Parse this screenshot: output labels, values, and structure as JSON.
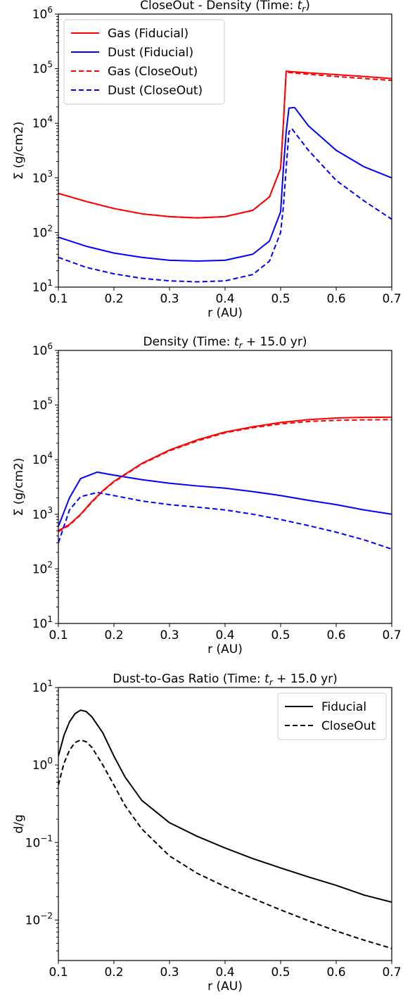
{
  "chart_data": [
    {
      "type": "line",
      "title": "CloseOut - Density (Time: t_r)",
      "title_parts": [
        "CloseOut - Density (Time: ",
        "t",
        "r",
        ")"
      ],
      "xlabel": "r (AU)",
      "ylabel": "Σ (g/cm2)",
      "xlim": [
        0.1,
        0.7
      ],
      "ylim": [
        10,
        1000000
      ],
      "yscale": "log",
      "grid": false,
      "legend_position": "top-left",
      "x_ticks": [
        "0.1",
        "0.2",
        "0.3",
        "0.4",
        "0.5",
        "0.6",
        "0.7"
      ],
      "y_ticks": [
        {
          "base": "10",
          "exp": "1"
        },
        {
          "base": "10",
          "exp": "2"
        },
        {
          "base": "10",
          "exp": "3"
        },
        {
          "base": "10",
          "exp": "4"
        },
        {
          "base": "10",
          "exp": "5"
        },
        {
          "base": "10",
          "exp": "6"
        }
      ],
      "series": [
        {
          "name": "Gas (Fiducial)",
          "color": "#ff0000",
          "dash": "solid",
          "x": [
            0.1,
            0.15,
            0.2,
            0.25,
            0.3,
            0.35,
            0.4,
            0.45,
            0.48,
            0.5,
            0.505,
            0.51,
            0.52,
            0.55,
            0.6,
            0.65,
            0.7
          ],
          "y": [
            520,
            370,
            275,
            220,
            195,
            185,
            195,
            255,
            450,
            1500,
            10000,
            90000,
            88000,
            84000,
            78000,
            72000,
            66000
          ]
        },
        {
          "name": "Dust (Fiducial)",
          "color": "#0000ff",
          "dash": "solid",
          "x": [
            0.1,
            0.15,
            0.2,
            0.25,
            0.3,
            0.35,
            0.4,
            0.45,
            0.48,
            0.5,
            0.505,
            0.51,
            0.515,
            0.525,
            0.55,
            0.6,
            0.65,
            0.7
          ],
          "y": [
            82,
            56,
            42,
            35,
            31,
            30,
            31,
            40,
            70,
            240,
            1500,
            7000,
            19000,
            19500,
            9000,
            3200,
            1600,
            1000
          ]
        },
        {
          "name": "Gas (CloseOut)",
          "color": "#ff0000",
          "dash": "dashed",
          "x": [
            0.1,
            0.15,
            0.2,
            0.25,
            0.3,
            0.35,
            0.4,
            0.45,
            0.48,
            0.5,
            0.505,
            0.51,
            0.52,
            0.55,
            0.6,
            0.65,
            0.7
          ],
          "y": [
            520,
            370,
            275,
            220,
            195,
            185,
            195,
            255,
            450,
            1500,
            10000,
            87000,
            84000,
            79000,
            72000,
            66000,
            61000
          ]
        },
        {
          "name": "Dust (CloseOut)",
          "color": "#0000ff",
          "dash": "dashed",
          "x": [
            0.1,
            0.15,
            0.2,
            0.25,
            0.3,
            0.35,
            0.4,
            0.45,
            0.48,
            0.5,
            0.505,
            0.51,
            0.515,
            0.52,
            0.55,
            0.6,
            0.65,
            0.7
          ],
          "y": [
            35,
            23,
            17.5,
            14.5,
            13,
            12.5,
            13,
            17,
            30,
            100,
            300,
            1500,
            7000,
            8000,
            3200,
            900,
            380,
            175
          ]
        }
      ]
    },
    {
      "type": "line",
      "title": "Density  (Time: t_r + 15.0 yr)",
      "title_parts": [
        "Density  (Time: ",
        "t",
        "r",
        " + 15.0 yr)"
      ],
      "xlabel": "r (AU)",
      "ylabel": "Σ (g/cm2)",
      "xlim": [
        0.1,
        0.7
      ],
      "ylim": [
        10,
        1000000
      ],
      "yscale": "log",
      "grid": false,
      "x_ticks": [
        "0.1",
        "0.2",
        "0.3",
        "0.4",
        "0.5",
        "0.6",
        "0.7"
      ],
      "y_ticks": [
        {
          "base": "10",
          "exp": "1"
        },
        {
          "base": "10",
          "exp": "2"
        },
        {
          "base": "10",
          "exp": "3"
        },
        {
          "base": "10",
          "exp": "4"
        },
        {
          "base": "10",
          "exp": "5"
        },
        {
          "base": "10",
          "exp": "6"
        }
      ],
      "series": [
        {
          "color": "#ff0000",
          "dash": "solid",
          "x": [
            0.1,
            0.12,
            0.14,
            0.16,
            0.18,
            0.2,
            0.25,
            0.3,
            0.35,
            0.4,
            0.45,
            0.5,
            0.55,
            0.6,
            0.65,
            0.7
          ],
          "y": [
            500,
            650,
            1000,
            1700,
            2700,
            4000,
            8500,
            15000,
            23000,
            32000,
            40000,
            48000,
            54000,
            58000,
            59500,
            60000
          ]
        },
        {
          "color": "#0000ff",
          "dash": "solid",
          "x": [
            0.1,
            0.12,
            0.14,
            0.17,
            0.2,
            0.25,
            0.3,
            0.35,
            0.4,
            0.45,
            0.5,
            0.55,
            0.6,
            0.65,
            0.7
          ],
          "y": [
            600,
            2000,
            4500,
            5900,
            5200,
            4300,
            3700,
            3300,
            3000,
            2600,
            2200,
            1800,
            1500,
            1200,
            1000
          ]
        },
        {
          "color": "#ff0000",
          "dash": "dashed",
          "x": [
            0.1,
            0.12,
            0.14,
            0.16,
            0.18,
            0.2,
            0.25,
            0.3,
            0.35,
            0.4,
            0.45,
            0.5,
            0.55,
            0.6,
            0.65,
            0.7
          ],
          "y": [
            480,
            630,
            980,
            1650,
            2650,
            3900,
            8300,
            14500,
            22000,
            31000,
            38500,
            45000,
            50000,
            52500,
            53500,
            54000
          ]
        },
        {
          "color": "#0000ff",
          "dash": "dashed",
          "x": [
            0.1,
            0.12,
            0.14,
            0.17,
            0.2,
            0.25,
            0.3,
            0.35,
            0.4,
            0.45,
            0.5,
            0.55,
            0.6,
            0.65,
            0.7
          ],
          "y": [
            300,
            1200,
            2100,
            2500,
            2200,
            1750,
            1500,
            1350,
            1200,
            1000,
            800,
            620,
            470,
            340,
            230
          ]
        }
      ]
    },
    {
      "type": "line",
      "title": "Dust-to-Gas Ratio (Time: t_r + 15.0 yr)",
      "title_parts": [
        "Dust-to-Gas Ratio (Time: ",
        "t",
        "r",
        " + 15.0 yr)"
      ],
      "xlabel": "r (AU)",
      "ylabel": "d/g",
      "xlim": [
        0.1,
        0.7
      ],
      "ylim": [
        0.003,
        10
      ],
      "yscale": "log",
      "grid": false,
      "legend_position": "top-right",
      "x_ticks": [
        "0.1",
        "0.2",
        "0.3",
        "0.4",
        "0.5",
        "0.6",
        "0.7"
      ],
      "y_ticks": [
        {
          "base": "10",
          "exp": "−2",
          "value": 0.01
        },
        {
          "base": "10",
          "exp": "−1",
          "value": 0.1
        },
        {
          "base": "10",
          "exp": "0",
          "value": 1
        },
        {
          "base": "10",
          "exp": "1",
          "value": 10
        }
      ],
      "series": [
        {
          "name": "Fiducial",
          "color": "#000000",
          "dash": "solid",
          "x": [
            0.1,
            0.11,
            0.12,
            0.13,
            0.14,
            0.15,
            0.16,
            0.18,
            0.2,
            0.22,
            0.25,
            0.3,
            0.35,
            0.4,
            0.45,
            0.5,
            0.55,
            0.6,
            0.65,
            0.7
          ],
          "y": [
            1.3,
            2.4,
            3.6,
            4.6,
            5.1,
            4.9,
            4.2,
            2.6,
            1.3,
            0.7,
            0.35,
            0.18,
            0.12,
            0.085,
            0.062,
            0.047,
            0.036,
            0.028,
            0.021,
            0.017
          ]
        },
        {
          "name": "CloseOut",
          "color": "#000000",
          "dash": "dashed",
          "x": [
            0.1,
            0.11,
            0.12,
            0.13,
            0.14,
            0.15,
            0.16,
            0.18,
            0.2,
            0.22,
            0.25,
            0.3,
            0.35,
            0.4,
            0.45,
            0.5,
            0.55,
            0.6,
            0.65,
            0.7
          ],
          "y": [
            0.55,
            1.05,
            1.55,
            1.95,
            2.1,
            2.0,
            1.7,
            1.0,
            0.55,
            0.3,
            0.15,
            0.067,
            0.04,
            0.027,
            0.019,
            0.0135,
            0.0098,
            0.0072,
            0.0055,
            0.0043
          ]
        }
      ]
    }
  ]
}
